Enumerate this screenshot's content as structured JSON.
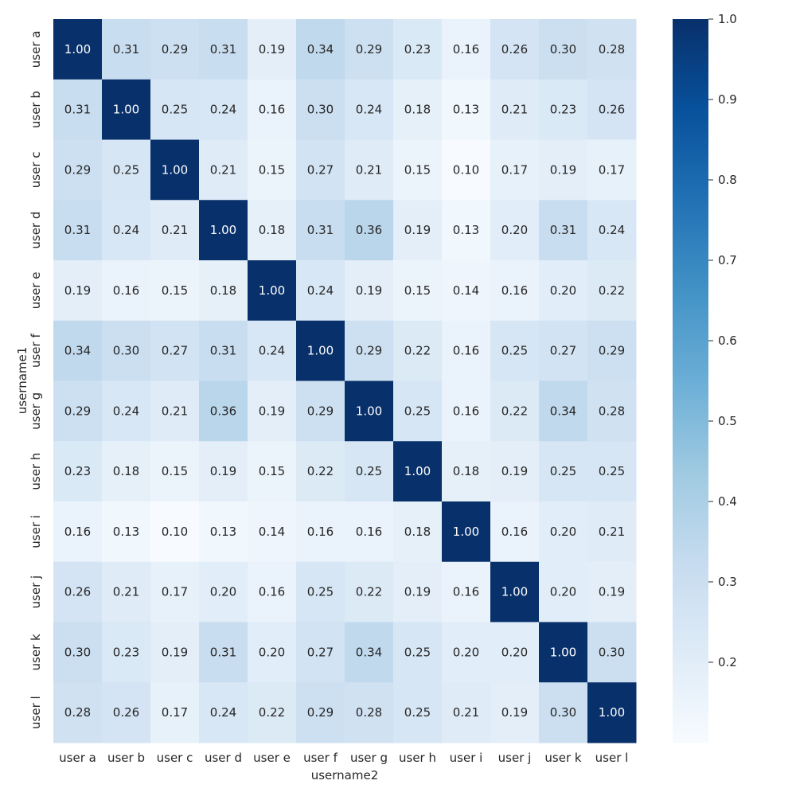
{
  "chart_data": {
    "type": "heatmap",
    "xlabel": "username2",
    "ylabel": "username1",
    "x_categories": [
      "user a",
      "user b",
      "user c",
      "user d",
      "user e",
      "user f",
      "user g",
      "user h",
      "user i",
      "user j",
      "user k",
      "user l"
    ],
    "y_categories": [
      "user a",
      "user b",
      "user c",
      "user d",
      "user e",
      "user f",
      "user g",
      "user h",
      "user i",
      "user j",
      "user k",
      "user l"
    ],
    "values": [
      [
        1.0,
        0.31,
        0.29,
        0.31,
        0.19,
        0.34,
        0.29,
        0.23,
        0.16,
        0.26,
        0.3,
        0.28
      ],
      [
        0.31,
        1.0,
        0.25,
        0.24,
        0.16,
        0.3,
        0.24,
        0.18,
        0.13,
        0.21,
        0.23,
        0.26
      ],
      [
        0.29,
        0.25,
        1.0,
        0.21,
        0.15,
        0.27,
        0.21,
        0.15,
        0.1,
        0.17,
        0.19,
        0.17
      ],
      [
        0.31,
        0.24,
        0.21,
        1.0,
        0.18,
        0.31,
        0.36,
        0.19,
        0.13,
        0.2,
        0.31,
        0.24
      ],
      [
        0.19,
        0.16,
        0.15,
        0.18,
        1.0,
        0.24,
        0.19,
        0.15,
        0.14,
        0.16,
        0.2,
        0.22
      ],
      [
        0.34,
        0.3,
        0.27,
        0.31,
        0.24,
        1.0,
        0.29,
        0.22,
        0.16,
        0.25,
        0.27,
        0.29
      ],
      [
        0.29,
        0.24,
        0.21,
        0.36,
        0.19,
        0.29,
        1.0,
        0.25,
        0.16,
        0.22,
        0.34,
        0.28
      ],
      [
        0.23,
        0.18,
        0.15,
        0.19,
        0.15,
        0.22,
        0.25,
        1.0,
        0.18,
        0.19,
        0.25,
        0.25
      ],
      [
        0.16,
        0.13,
        0.1,
        0.13,
        0.14,
        0.16,
        0.16,
        0.18,
        1.0,
        0.16,
        0.2,
        0.21
      ],
      [
        0.26,
        0.21,
        0.17,
        0.2,
        0.16,
        0.25,
        0.22,
        0.19,
        0.16,
        1.0,
        0.2,
        0.19
      ],
      [
        0.3,
        0.23,
        0.19,
        0.31,
        0.2,
        0.27,
        0.34,
        0.25,
        0.2,
        0.2,
        1.0,
        0.3
      ],
      [
        0.28,
        0.26,
        0.17,
        0.24,
        0.22,
        0.29,
        0.28,
        0.25,
        0.21,
        0.19,
        0.3,
        1.0
      ]
    ],
    "value_format": "2 decimals",
    "colormap": "Blues",
    "vmin": 0.1,
    "vmax": 1.0,
    "colorbar_ticks": [
      "0.2",
      "0.3",
      "0.4",
      "0.5",
      "0.6",
      "0.7",
      "0.8",
      "0.9",
      "1.0"
    ],
    "colors": {
      "low": "#f7fbff",
      "high": "#08306b",
      "dark_text": "#262626",
      "light_text": "#ffffff"
    }
  }
}
